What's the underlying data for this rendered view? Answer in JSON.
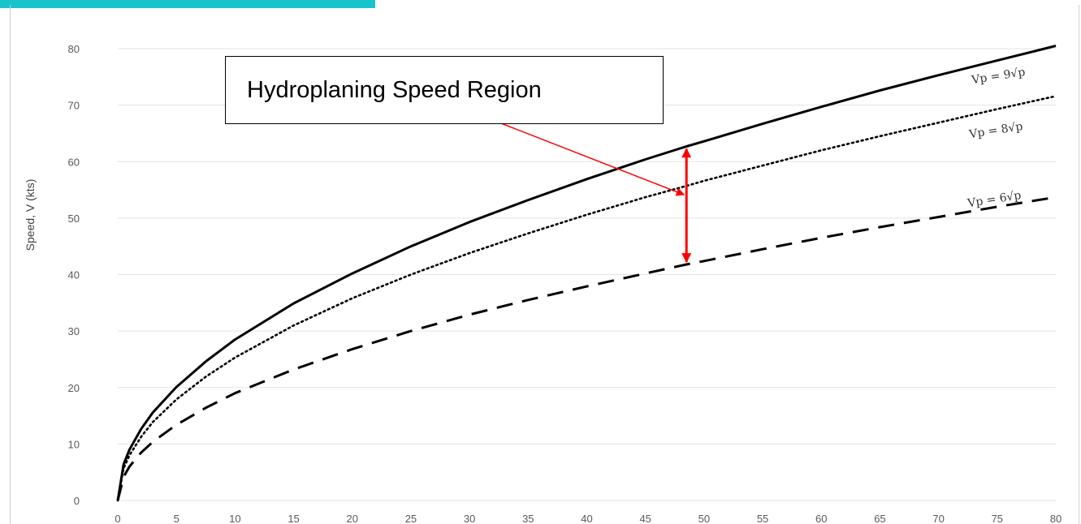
{
  "chart_data": {
    "type": "line",
    "title": "",
    "xlabel": "",
    "ylabel": "Speed, V (kts)",
    "xlim": [
      0,
      80
    ],
    "ylim": [
      0,
      80
    ],
    "y_ticks": [
      0,
      10,
      20,
      30,
      40,
      50,
      60,
      70,
      80
    ],
    "x_ticks": [
      0,
      5,
      10,
      15,
      20,
      25,
      30,
      35,
      40,
      45,
      50,
      55,
      60,
      65,
      70,
      75,
      80
    ],
    "grid": "horizontal",
    "series": [
      {
        "name": "Vp = 9√p",
        "coefficient": 9,
        "style": "solid",
        "x": [
          0,
          0.5,
          1,
          2,
          3,
          5,
          7.5,
          10,
          15,
          20,
          25,
          30,
          35,
          40,
          45,
          48.5,
          50,
          55,
          60,
          65,
          70,
          75,
          80
        ],
        "y": [
          0,
          6.4,
          9.0,
          12.7,
          15.6,
          20.1,
          24.6,
          28.5,
          34.9,
          40.2,
          45.0,
          49.3,
          53.2,
          56.9,
          60.4,
          62.7,
          63.6,
          66.7,
          69.7,
          72.6,
          75.3,
          77.9,
          80.5
        ]
      },
      {
        "name": "Vp = 8√p",
        "coefficient": 8,
        "style": "dotted",
        "x": [
          0,
          0.5,
          1,
          2,
          3,
          5,
          7.5,
          10,
          15,
          20,
          25,
          30,
          35,
          40,
          45,
          48.5,
          50,
          55,
          60,
          65,
          70,
          75,
          80
        ],
        "y": [
          0,
          5.7,
          8.0,
          11.3,
          13.9,
          17.9,
          21.9,
          25.3,
          31.0,
          35.8,
          40.0,
          43.8,
          47.3,
          50.6,
          53.7,
          55.7,
          56.6,
          59.3,
          62.0,
          64.5,
          66.9,
          69.3,
          71.6
        ]
      },
      {
        "name": "Vp = 6√p",
        "coefficient": 6,
        "style": "dashed",
        "x": [
          0,
          0.5,
          1,
          2,
          3,
          5,
          7.5,
          10,
          15,
          20,
          25,
          30,
          35,
          40,
          45,
          48.5,
          50,
          55,
          60,
          65,
          70,
          75,
          80
        ],
        "y": [
          0,
          4.2,
          6.0,
          8.5,
          10.4,
          13.4,
          16.4,
          19.0,
          23.2,
          26.8,
          30.0,
          32.9,
          35.5,
          37.9,
          40.2,
          41.8,
          42.4,
          44.5,
          46.5,
          48.4,
          50.2,
          52.0,
          53.7
        ]
      }
    ],
    "annotation": {
      "text": "Hydroplaning Speed Region",
      "x": 48.5,
      "y_range": [
        41.8,
        62.7
      ],
      "pointer_target": [
        48.5,
        54.0
      ],
      "arrow_color": "#ff0000"
    }
  }
}
